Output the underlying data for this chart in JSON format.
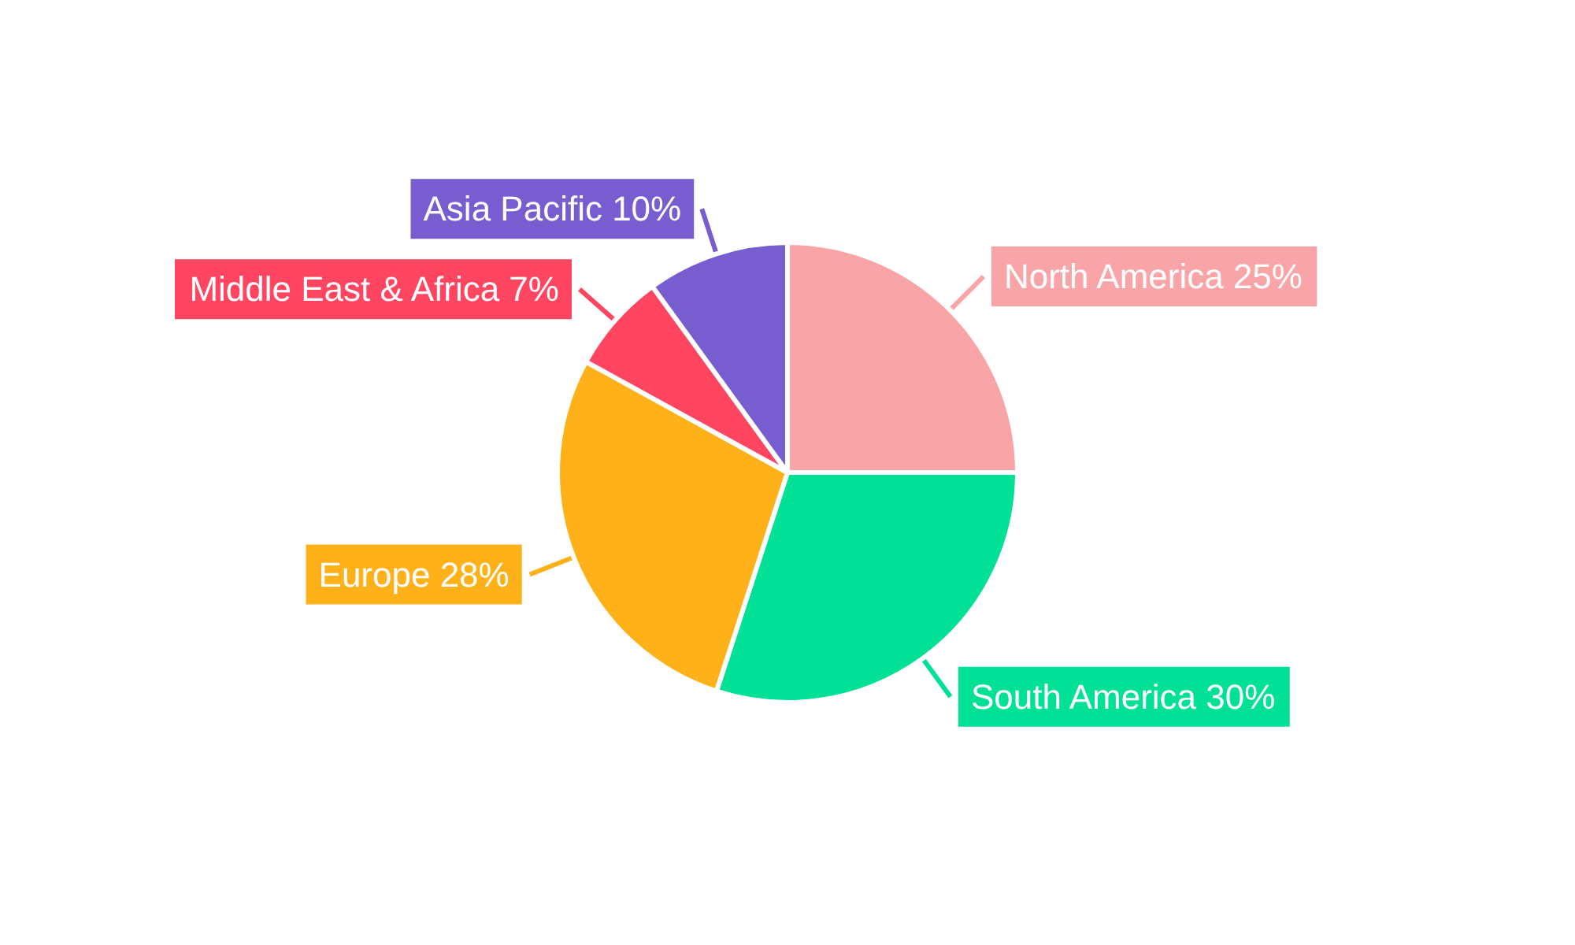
{
  "chart_data": {
    "type": "pie",
    "categories": [
      "North America",
      "South America",
      "Europe",
      "Middle East & Africa",
      "Asia Pacific"
    ],
    "values": [
      25,
      30,
      28,
      7,
      10
    ],
    "colors": [
      "#f9a5a8",
      "#00e096",
      "#ffb11a",
      "#ff4560",
      "#775dd0"
    ],
    "value_labels": [
      "25%",
      "30%",
      "28%",
      "7%",
      "10%"
    ],
    "legend": false
  }
}
